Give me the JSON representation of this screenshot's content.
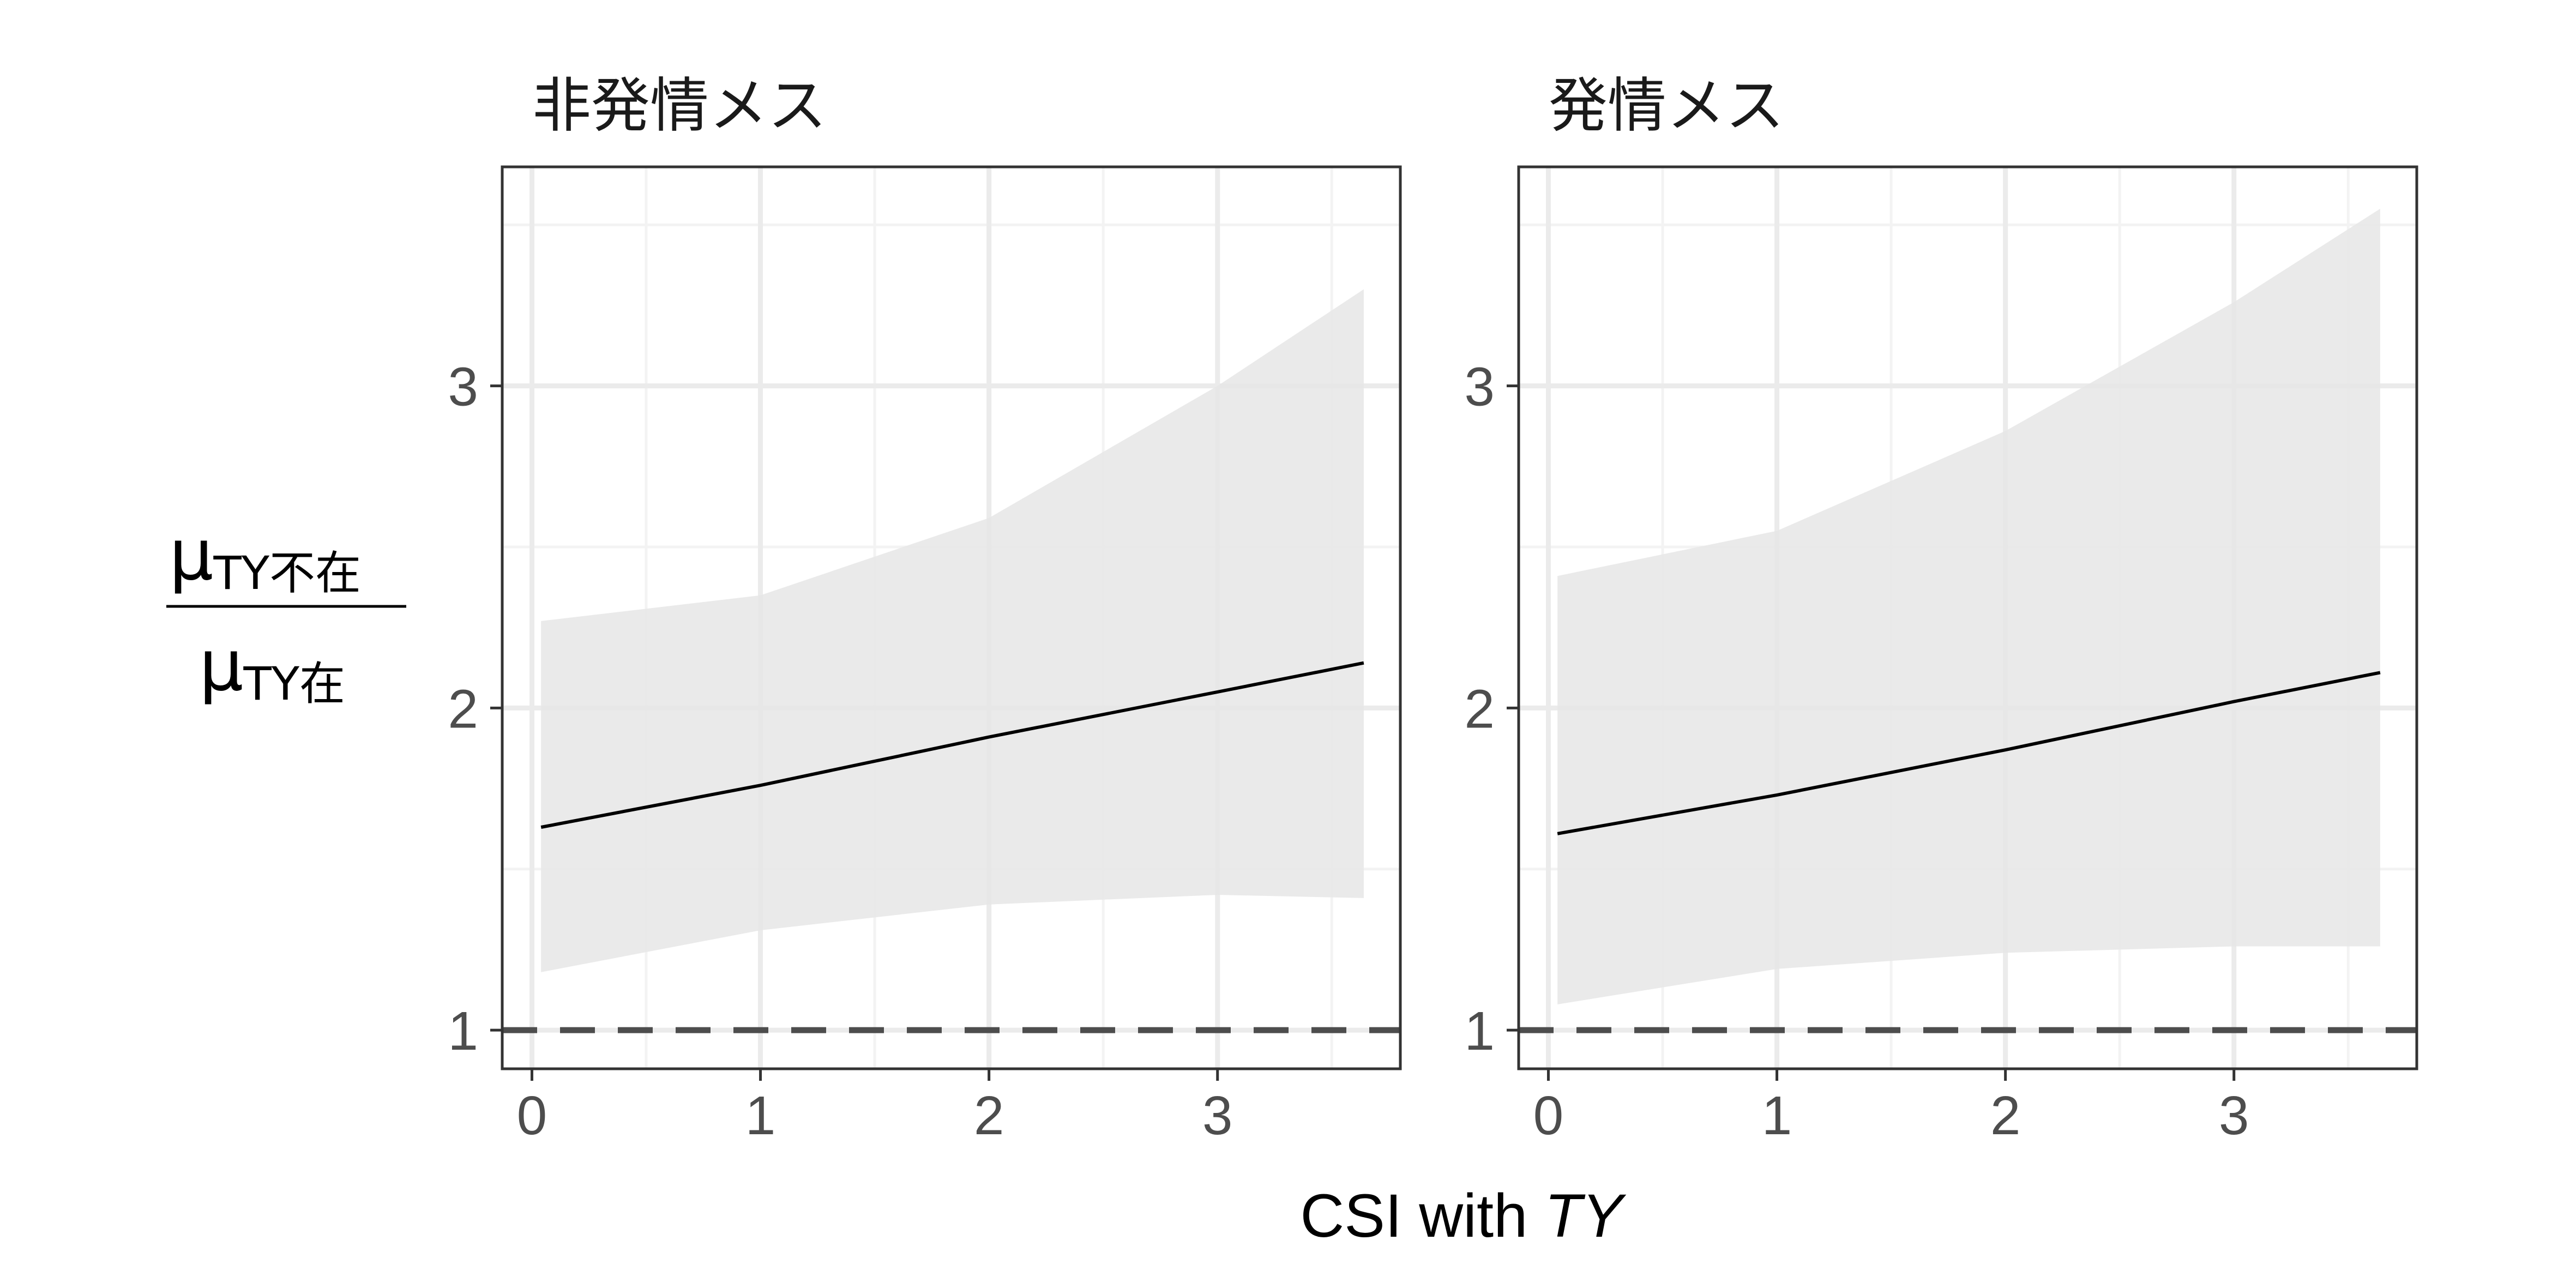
{
  "chart_data": {
    "type": "line",
    "xlabel_main": "CSI with ",
    "xlabel_italic": "TY",
    "ylabel": {
      "numerator_symbol": "μ",
      "numerator_sub": "TY不在",
      "denominator_symbol": "μ",
      "denominator_sub": "TY在"
    },
    "xlim": [
      -0.13,
      3.8
    ],
    "ylim": [
      0.88,
      3.68
    ],
    "x_ticks": [
      0,
      1,
      2,
      3
    ],
    "x_ticks_text": [
      "0",
      "1",
      "2",
      "3"
    ],
    "y_ticks": [
      1,
      2,
      3
    ],
    "y_ticks_text": [
      "1",
      "2",
      "3"
    ],
    "reference_line": {
      "y": 1,
      "style": "dashed",
      "color": "#4d4d4d"
    },
    "panels": [
      {
        "label": "非発情メス",
        "x": [
          0.04,
          1.0,
          2.0,
          3.0,
          3.64
        ],
        "y": [
          1.63,
          1.76,
          1.91,
          2.05,
          2.14
        ],
        "ci_lower": [
          1.18,
          1.31,
          1.39,
          1.42,
          1.41
        ],
        "ci_upper": [
          2.27,
          2.35,
          2.59,
          3.0,
          3.3
        ]
      },
      {
        "label": "発情メス",
        "x": [
          0.04,
          1.0,
          2.0,
          3.0,
          3.64
        ],
        "y": [
          1.61,
          1.73,
          1.87,
          2.02,
          2.11
        ],
        "ci_lower": [
          1.08,
          1.19,
          1.24,
          1.26,
          1.26
        ],
        "ci_upper": [
          2.41,
          2.55,
          2.86,
          3.26,
          3.55
        ]
      }
    ],
    "colors": {
      "line": "#000000",
      "ribbon": "#e6e6e6",
      "grid_major": "#ebebeb",
      "grid_minor": "#f3f3f3",
      "panel_border": "#333333",
      "ticks": "#333333"
    }
  }
}
